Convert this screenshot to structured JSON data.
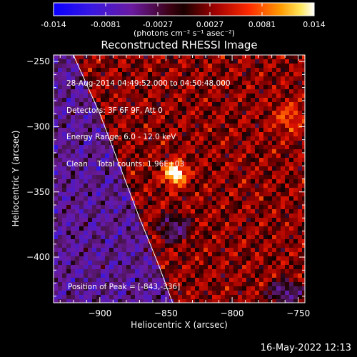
{
  "colorbar": {
    "ticks": [
      "-0.014",
      "-0.0081",
      "-0.0027",
      "0.0027",
      "0.0081",
      "0.014"
    ],
    "units_label": "(photons cm⁻² s⁻¹ asec⁻²)"
  },
  "info": {
    "line1": "28-Aug-2014 04:49:52.000 to 04:50:48.000",
    "line2": "Detectors: 3F 6F 9F, Att 0",
    "line3": "Energy Range: 6.0 - 12.0 keV",
    "line4": "Clean    Total counts: 1.96E+03"
  },
  "peak_label": "Position of Peak = [-843,-336]",
  "footer_timestamp": "16-May-2022 12:13",
  "chart_data": {
    "type": "heatmap",
    "title": "Reconstructed RHESSI Image",
    "xlabel": "Heliocentric X (arcsec)",
    "ylabel": "Heliocentric Y (arcsec)",
    "xlim": [
      -935,
      -745
    ],
    "ylim": [
      -435,
      -245
    ],
    "x_ticks": [
      -900,
      -850,
      -800,
      -750
    ],
    "y_ticks": [
      -250,
      -300,
      -350,
      -400
    ],
    "x_tick_labels": [
      "−900",
      "−850",
      "−800",
      "−750"
    ],
    "y_tick_labels": [
      "−250",
      "−300",
      "−350",
      "−400"
    ],
    "colorbar_range": [
      -0.014,
      0.014
    ],
    "peak": [
      -843,
      -336
    ],
    "grid": false,
    "limb_curve": [
      [
        -920,
        -245
      ],
      [
        -900,
        -290
      ],
      [
        -885,
        -330
      ],
      [
        -870,
        -370
      ],
      [
        -856,
        -405
      ],
      [
        -845,
        -435
      ]
    ],
    "colors": {
      "background": "#000000",
      "text": "#ffffff",
      "limb": "#ffffff"
    }
  }
}
